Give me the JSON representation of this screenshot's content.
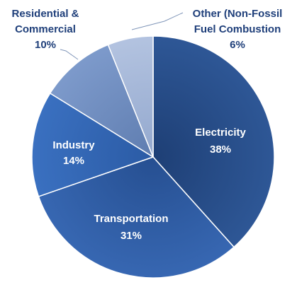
{
  "chart_data": {
    "type": "pie",
    "title": "",
    "slices": [
      {
        "name": "Electricity",
        "value": 38,
        "label": "Electricity",
        "value_label": "38%",
        "color": "#2E5796",
        "color_dark": "#1E3F75"
      },
      {
        "name": "Transportation",
        "value": 31,
        "label": "Transportation",
        "value_label": "31%",
        "color": "#3767B2",
        "color_dark": "#264F91"
      },
      {
        "name": "Industry",
        "value": 14,
        "label": "Industry",
        "value_label": "14%",
        "color": "#3A70C0",
        "color_dark": "#2B5BA5"
      },
      {
        "name": "Residential & Commercial",
        "value": 10,
        "label_lines": [
          "Residential &",
          "Commercial"
        ],
        "value_label": "10%",
        "color": "#7D9ACB",
        "color_dark": "#5F7DB0"
      },
      {
        "name": "Other (Non-Fossil Fuel Combustion",
        "value": 6,
        "label_lines": [
          "Other (Non-Fossil",
          "Fuel Combustion"
        ],
        "value_label": "6%",
        "color": "#B3C3E0",
        "color_dark": "#93A8CE"
      }
    ],
    "start_angle_deg": 0,
    "direction": "clockwise",
    "legend": "none",
    "label_color": "#1F3F7A"
  }
}
